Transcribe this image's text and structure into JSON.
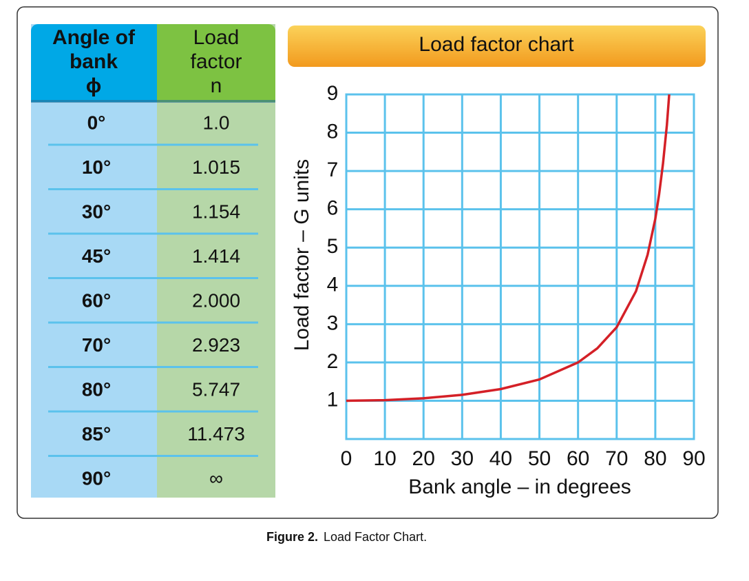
{
  "table": {
    "headers": [
      [
        "Angle of",
        "bank",
        "ϕ"
      ],
      [
        "Load",
        "factor",
        "n"
      ]
    ],
    "rows": [
      [
        "0°",
        "1.0"
      ],
      [
        "10°",
        "1.015"
      ],
      [
        "30°",
        "1.154"
      ],
      [
        "45°",
        "1.414"
      ],
      [
        "60°",
        "2.000"
      ],
      [
        "70°",
        "2.923"
      ],
      [
        "80°",
        "5.747"
      ],
      [
        "85°",
        "11.473"
      ],
      [
        "90°",
        "∞"
      ]
    ]
  },
  "chart_data": {
    "type": "line",
    "title": "Load factor chart",
    "x_label": "Bank angle – in degrees",
    "y_label": "Load factor – G units",
    "x": [
      0,
      10,
      20,
      30,
      40,
      50,
      60,
      65,
      70,
      75,
      78,
      80,
      81,
      82,
      83,
      83.6
    ],
    "series": [
      {
        "name": "Load factor",
        "color": "#d42027",
        "values": [
          1.0,
          1.015,
          1.064,
          1.154,
          1.305,
          1.556,
          2.0,
          2.37,
          2.92,
          3.86,
          4.81,
          5.75,
          6.4,
          7.2,
          8.2,
          9.0
        ]
      }
    ],
    "xlim": [
      0,
      90
    ],
    "xticks": [
      0,
      10,
      20,
      30,
      40,
      50,
      60,
      70,
      80,
      90
    ],
    "ylim": [
      0,
      9
    ],
    "yticks": [
      1,
      2,
      3,
      4,
      5,
      6,
      7,
      8,
      9
    ],
    "grid": true,
    "grid_color": "#5bc2ec"
  },
  "caption": {
    "label": "Figure 2.",
    "text": "Load Factor Chart."
  }
}
